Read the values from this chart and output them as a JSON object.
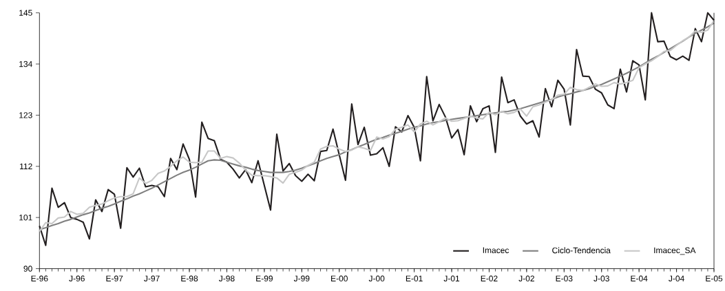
{
  "chart_data": {
    "type": "line",
    "categories": [
      "E-96",
      null,
      null,
      null,
      null,
      null,
      "J-96",
      null,
      null,
      null,
      null,
      null,
      "E-97",
      null,
      null,
      null,
      null,
      null,
      "J-97",
      null,
      null,
      null,
      null,
      null,
      "E-98",
      null,
      null,
      null,
      null,
      null,
      "J-98",
      null,
      null,
      null,
      null,
      null,
      "E-99",
      null,
      null,
      null,
      null,
      null,
      "J-99",
      null,
      null,
      null,
      null,
      null,
      "E-00",
      null,
      null,
      null,
      null,
      null,
      "J-00",
      null,
      null,
      null,
      null,
      null,
      "E-01",
      null,
      null,
      null,
      null,
      null,
      "J-01",
      null,
      null,
      null,
      null,
      null,
      "E-02",
      null,
      null,
      null,
      null,
      null,
      "J-02",
      null,
      null,
      null,
      null,
      null,
      "E-03",
      null,
      null,
      null,
      null,
      null,
      "J-03",
      null,
      null,
      null,
      null,
      null,
      "E-04",
      null,
      null,
      null,
      null,
      null,
      "J-04",
      null,
      null,
      null,
      null,
      null,
      "E-05"
    ],
    "series": [
      {
        "name": "Imacec",
        "color": "#231f20",
        "values": [
          99.2,
          95,
          107.3,
          103.2,
          104.2,
          101,
          100.6,
          100,
          96.4,
          104.8,
          102.3,
          107,
          106,
          98.7,
          111.7,
          109.7,
          111.6,
          107.6,
          107.9,
          107.6,
          105.5,
          113.7,
          111.3,
          116.8,
          113.5,
          105.4,
          121.5,
          118,
          117.5,
          113.5,
          112.9,
          111.4,
          109.5,
          111.3,
          108.5,
          113.2,
          107.9,
          102.6,
          118.9,
          111,
          112.6,
          110,
          108.8,
          110.3,
          108.9,
          115.2,
          115.4,
          120,
          114.5,
          109,
          125.4,
          116.7,
          120.4,
          114.4,
          114.7,
          116,
          112,
          120.5,
          119.4,
          122.9,
          120.4,
          113.2,
          131.3,
          121.8,
          125.3,
          122.6,
          118.1,
          119.9,
          114.5,
          125,
          121.6,
          124.4,
          125,
          115,
          131.2,
          125.7,
          126.3,
          122.8,
          121.1,
          121.8,
          118.3,
          128.7,
          124.8,
          130.5,
          128.6,
          120.9,
          137.1,
          131.4,
          131.3,
          128.6,
          127.8,
          125.2,
          124.4,
          132.9,
          128,
          134.7,
          133.8,
          126.3,
          145,
          138.8,
          138.9,
          135.6,
          134.9,
          135.7,
          134.8,
          141.6,
          138.8,
          145,
          143.4
        ]
      },
      {
        "name": "Ciclo-Tendencia",
        "color": "#808080",
        "values": [
          98.4,
          98.8,
          99.3,
          99.7,
          100.2,
          100.6,
          101.1,
          101.6,
          102,
          102.5,
          103,
          103.4,
          103.9,
          104.5,
          105,
          105.6,
          106.1,
          106.7,
          107.3,
          108,
          108.7,
          109.4,
          110.1,
          110.7,
          111.2,
          111.8,
          112.5,
          113.2,
          113.4,
          113.3,
          112.9,
          112.5,
          112.1,
          111.8,
          111.4,
          111.1,
          110.9,
          110.7,
          110.7,
          110.7,
          110.9,
          111.2,
          111.6,
          112.1,
          112.6,
          113.2,
          113.7,
          114.1,
          114.5,
          115.1,
          115.6,
          116.2,
          116.7,
          117.3,
          117.8,
          118.2,
          118.7,
          119.1,
          119.5,
          120,
          120.4,
          120.7,
          121.1,
          121.4,
          121.6,
          121.9,
          122.1,
          122.3,
          122.5,
          122.7,
          122.9,
          123.1,
          123.3,
          123.5,
          123.7,
          123.8,
          124.1,
          124.4,
          124.8,
          125.2,
          125.6,
          126,
          126.4,
          126.9,
          127.3,
          127.6,
          128,
          128.3,
          128.7,
          129.2,
          129.6,
          130.2,
          130.8,
          131.4,
          132,
          132.7,
          133.4,
          134.2,
          135,
          135.7,
          136.5,
          137.3,
          138.1,
          138.9,
          139.8,
          140.6,
          141.3,
          142,
          142.8
        ]
      },
      {
        "name": "Imacec_SA",
        "color": "#c8c8c8",
        "values": [
          98,
          99.9,
          99.7,
          100.9,
          101.1,
          102.3,
          101.7,
          101.9,
          103.2,
          103.6,
          103.9,
          104.6,
          105.2,
          105.5,
          105.5,
          106.1,
          109.5,
          108.3,
          109,
          110.5,
          111,
          112,
          113.2,
          114,
          112.9,
          112.8,
          112.9,
          115.3,
          115.3,
          113.7,
          114.1,
          113.8,
          112.7,
          111.2,
          110.1,
          110,
          110,
          109.8,
          109.5,
          108.4,
          110.3,
          110.7,
          111.2,
          112.2,
          112.9,
          115.7,
          116.3,
          116.4,
          115.7,
          115.2,
          115.5,
          116.2,
          115.9,
          115.4,
          118.3,
          117.9,
          118.4,
          120,
          120.4,
          120.9,
          119.4,
          121.1,
          121.7,
          120.9,
          121.6,
          122.4,
          121.7,
          121.8,
          122.3,
          122.8,
          122.4,
          122.2,
          123.6,
          123.1,
          123.8,
          123.3,
          123.6,
          124.3,
          122.8,
          124.8,
          125.2,
          125.8,
          126.3,
          127.3,
          127.5,
          129,
          128.5,
          128.3,
          129,
          129.7,
          129.2,
          129.3,
          130,
          129.7,
          130,
          130.5,
          133.2,
          134,
          134.7,
          135.6,
          136.7,
          136.9,
          138,
          139,
          139.8,
          141.1,
          140.8,
          141.3,
          143.3
        ]
      }
    ],
    "ylim": [
      90,
      145
    ],
    "yticks": [
      90,
      101,
      112,
      123,
      134,
      145
    ],
    "legend": "bottom right"
  }
}
